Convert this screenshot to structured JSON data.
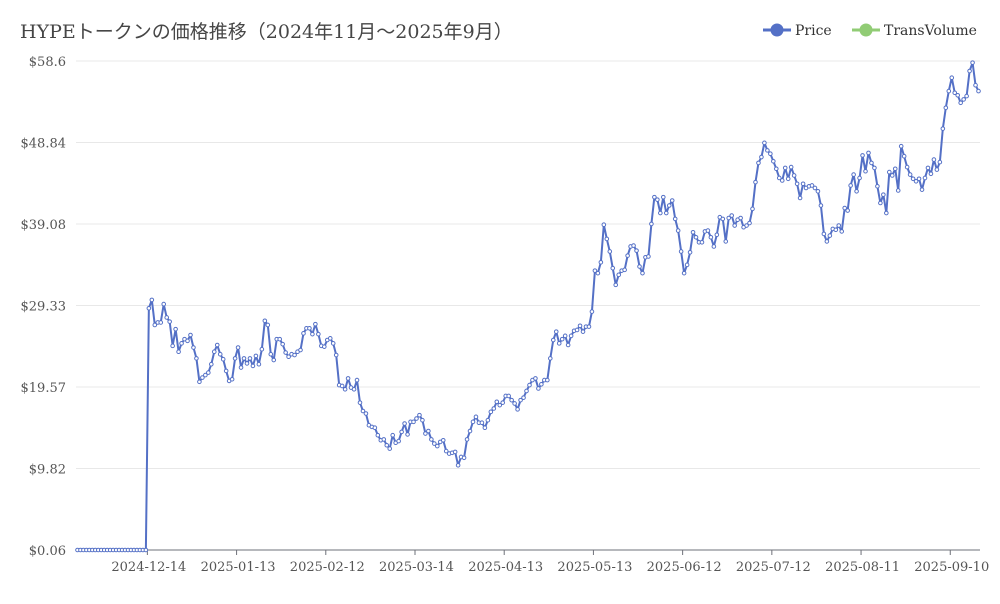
{
  "chart_data": {
    "type": "line",
    "title": "HYPEトークンの価格推移（2024年11月〜2025年9月）",
    "xlabel": "",
    "ylabel": "",
    "ylim": [
      0.06,
      58.6
    ],
    "y_ticks": [
      "$0.06",
      "$9.82",
      "$19.57",
      "$29.33",
      "$39.08",
      "$48.84",
      "$58.6"
    ],
    "y_tick_values": [
      0.06,
      9.82,
      19.57,
      29.33,
      39.08,
      48.84,
      58.6
    ],
    "x_ticks": [
      "2024-12-14",
      "2025-01-13",
      "2025-02-12",
      "2025-03-14",
      "2025-04-13",
      "2025-05-13",
      "2025-06-12",
      "2025-07-12",
      "2025-08-11",
      "2025-09-10"
    ],
    "grid": true,
    "legend_position": "top-right",
    "legend": [
      {
        "name": "Price",
        "color": "#5470c6"
      },
      {
        "name": "TransVolume",
        "color": "#91cc75"
      }
    ],
    "series": [
      {
        "name": "Price",
        "color": "#5470c6",
        "x_start": "2024-11-20",
        "x_end": "2025-09-14",
        "values": [
          0.06,
          0.06,
          0.06,
          0.06,
          0.06,
          0.06,
          0.06,
          0.06,
          0.06,
          0.06,
          0.06,
          0.06,
          0.06,
          0.06,
          0.06,
          0.06,
          0.06,
          0.06,
          0.06,
          0.06,
          0.06,
          0.06,
          0.06,
          0.06,
          29.0,
          30.0,
          27.0,
          27.3,
          27.3,
          29.5,
          27.9,
          27.4,
          24.5,
          26.5,
          23.8,
          24.8,
          25.3,
          25.1,
          25.8,
          24.3,
          23.0,
          20.2,
          20.7,
          21.0,
          21.3,
          22.3,
          23.8,
          24.6,
          23.5,
          22.9,
          21.5,
          20.3,
          20.5,
          23.0,
          24.3,
          21.9,
          23.0,
          22.4,
          23.0,
          22.1,
          23.3,
          22.3,
          24.1,
          27.5,
          27.0,
          23.5,
          22.8,
          25.3,
          25.3,
          24.7,
          23.7,
          23.2,
          23.5,
          23.4,
          23.8,
          24.0,
          26.0,
          26.6,
          26.6,
          25.9,
          27.1,
          25.9,
          24.5,
          24.4,
          25.2,
          25.4,
          24.8,
          23.4,
          19.8,
          19.7,
          19.3,
          20.6,
          19.5,
          19.3,
          20.4,
          17.7,
          16.7,
          16.4,
          15.0,
          14.8,
          14.7,
          13.8,
          13.2,
          13.3,
          12.6,
          12.2,
          13.8,
          12.9,
          13.1,
          14.2,
          15.2,
          13.9,
          15.4,
          15.4,
          15.8,
          16.2,
          15.6,
          14.0,
          14.3,
          13.3,
          12.8,
          12.5,
          13.0,
          13.2,
          11.9,
          11.6,
          11.7,
          11.8,
          10.2,
          11.2,
          11.1,
          13.3,
          14.3,
          15.4,
          16.0,
          15.3,
          15.3,
          14.7,
          15.6,
          16.6,
          17.0,
          17.8,
          17.4,
          17.7,
          18.5,
          18.5,
          18.0,
          17.6,
          16.9,
          18.0,
          18.3,
          19.1,
          19.8,
          20.4,
          20.6,
          19.4,
          19.9,
          20.4,
          20.4,
          23.0,
          25.2,
          26.2,
          24.8,
          25.3,
          25.7,
          24.6,
          25.7,
          26.3,
          26.4,
          26.9,
          26.2,
          26.8,
          26.8,
          28.6,
          33.5,
          33.2,
          34.5,
          39.0,
          37.3,
          35.8,
          33.8,
          31.8,
          33.0,
          33.5,
          33.6,
          35.3,
          36.4,
          36.5,
          35.9,
          34.0,
          33.2,
          35.1,
          35.2,
          39.1,
          42.3,
          42.0,
          40.4,
          42.3,
          40.4,
          41.3,
          41.9,
          39.7,
          38.3,
          35.8,
          33.2,
          34.2,
          35.7,
          38.1,
          37.5,
          36.9,
          36.9,
          38.2,
          38.3,
          37.5,
          36.4,
          37.8,
          39.9,
          39.7,
          37.0,
          39.8,
          40.1,
          38.9,
          39.6,
          39.8,
          38.7,
          38.9,
          39.2,
          40.9,
          44.1,
          46.4,
          47.1,
          48.8,
          47.9,
          47.5,
          46.6,
          45.7,
          44.6,
          44.3,
          45.8,
          44.5,
          45.9,
          44.9,
          43.9,
          42.2,
          43.9,
          43.4,
          43.6,
          43.7,
          43.4,
          43.0,
          41.3,
          37.9,
          37.0,
          37.7,
          38.5,
          38.4,
          38.9,
          38.2,
          41.0,
          40.7,
          43.7,
          45.0,
          43.0,
          44.6,
          47.3,
          45.4,
          47.6,
          46.4,
          45.8,
          43.6,
          41.6,
          42.6,
          40.4,
          45.3,
          44.9,
          45.7,
          43.1,
          48.4,
          47.2,
          45.9,
          45.0,
          44.5,
          44.2,
          44.5,
          43.2,
          44.6,
          45.8,
          45.1,
          46.8,
          45.6,
          46.5,
          50.5,
          53.0,
          55.0,
          56.6,
          54.8,
          54.5,
          53.6,
          54.0,
          54.4,
          57.4,
          58.4,
          55.7,
          55.0
        ]
      },
      {
        "name": "TransVolume",
        "color": "#91cc75",
        "values": []
      }
    ]
  }
}
